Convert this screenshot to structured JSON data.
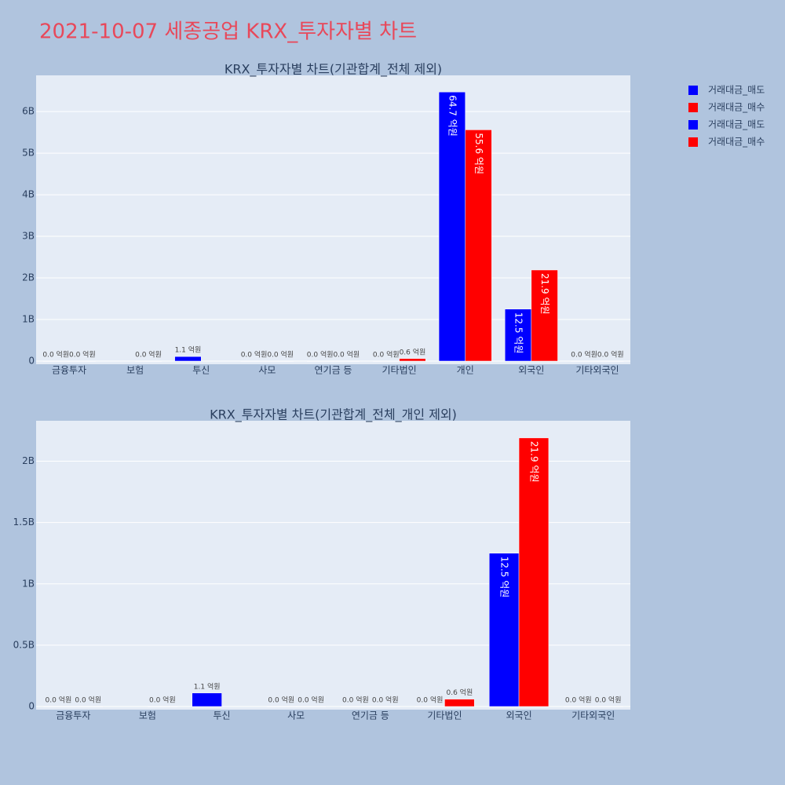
{
  "title": "2021-10-07 세종공업 KRX_투자자별 차트",
  "chart_data": [
    {
      "type": "bar",
      "title": "KRX_투자자별 차트(기관합계_전체 제외)",
      "categories": [
        "금융투자",
        "보험",
        "투신",
        "사모",
        "연기금 등",
        "기타법인",
        "개인",
        "외국인",
        "기타외국인"
      ],
      "series": [
        {
          "name": "거래대금_매도",
          "color": "#0000ff",
          "values": [
            0,
            null,
            110000000,
            0,
            0,
            0,
            6470000000,
            1250000000,
            0
          ],
          "value_labels": [
            "0.0 억원",
            null,
            "1.1 억원",
            "0.0 억원",
            "0.0 억원",
            "0.0 억원",
            "64.7 억원",
            "12.5 억원",
            "0.0 억원"
          ]
        },
        {
          "name": "거래대금_매수",
          "color": "#ff0000",
          "values": [
            0,
            0,
            null,
            0,
            0,
            60000000,
            5560000000,
            2190000000,
            0
          ],
          "value_labels": [
            "0.0 억원",
            "0.0 억원",
            null,
            "0.0 억원",
            "0.0 억원",
            "0.6 억원",
            "55.6 억원",
            "21.9 억원",
            "0.0 억원"
          ]
        }
      ],
      "ylim": [
        0,
        6870000000
      ],
      "yticks": [
        0,
        {
          "value": 1000000000,
          "label": "1B"
        },
        {
          "value": 2000000000,
          "label": "2B"
        },
        {
          "value": 3000000000,
          "label": "3B"
        },
        {
          "value": 4000000000,
          "label": "4B"
        },
        {
          "value": 5000000000,
          "label": "5B"
        },
        {
          "value": 6000000000,
          "label": "6B"
        }
      ],
      "grid": true
    },
    {
      "type": "bar",
      "title": "KRX_투자자별 차트(기관합계_전체_개인 제외)",
      "categories": [
        "금융투자",
        "보험",
        "투신",
        "사모",
        "연기금 등",
        "기타법인",
        "외국인",
        "기타외국인"
      ],
      "series": [
        {
          "name": "거래대금_매도",
          "color": "#0000ff",
          "values": [
            0,
            null,
            110000000,
            0,
            0,
            0,
            1250000000,
            0
          ],
          "value_labels": [
            "0.0 억원",
            null,
            "1.1 억원",
            "0.0 억원",
            "0.0 억원",
            "0.0 억원",
            "12.5 억원",
            "0.0 억원"
          ]
        },
        {
          "name": "거래대금_매수",
          "color": "#ff0000",
          "values": [
            0,
            0,
            null,
            0,
            0,
            60000000,
            2190000000,
            0
          ],
          "value_labels": [
            "0.0 억원",
            "0.0 억원",
            null,
            "0.0 억원",
            "0.0 억원",
            "0.6 억원",
            "21.9 억원",
            "0.0 억원"
          ]
        }
      ],
      "ylim": [
        0,
        2330000000
      ],
      "yticks": [
        0,
        {
          "value": 500000000,
          "label": "0.5B"
        },
        {
          "value": 1000000000,
          "label": "1B"
        },
        {
          "value": 1500000000,
          "label": "1.5B"
        },
        {
          "value": 2000000000,
          "label": "2B"
        }
      ],
      "grid": true
    }
  ]
}
